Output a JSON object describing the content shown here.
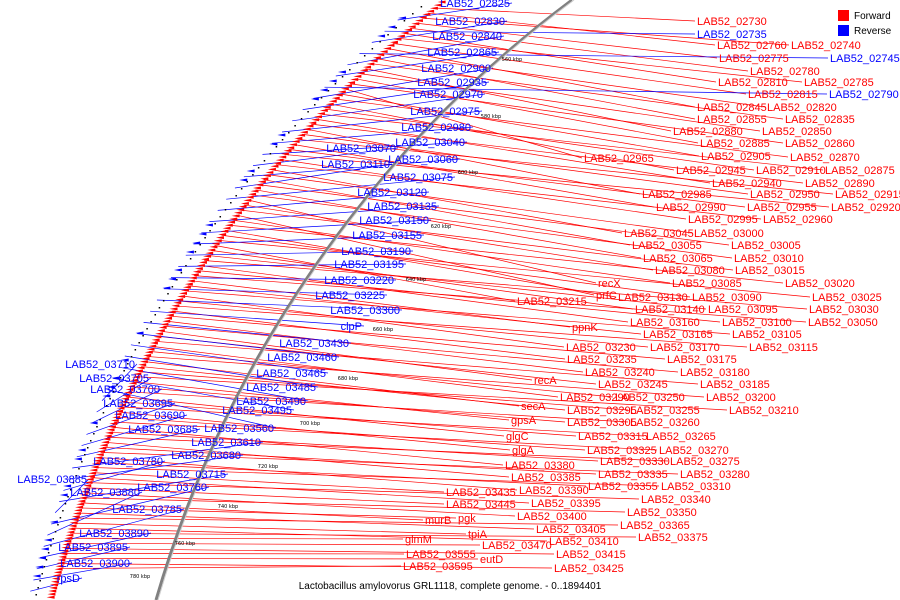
{
  "caption": "Lactobacillus amylovorus GRL1118, complete genome. - 0..1894401",
  "legend": [
    {
      "label": "Forward",
      "color": "#ff0000"
    },
    {
      "label": "Reverse",
      "color": "#0000ff"
    }
  ],
  "colors": {
    "forward": "#ff0000",
    "reverse": "#0000ff",
    "backbone": "#808080"
  },
  "ticks": [
    "560 kbp",
    "580 kbp",
    "600 kbp",
    "620 kbp",
    "640 kbp",
    "660 kbp",
    "680 kbp",
    "700 kbp",
    "720 kbp",
    "740 kbp",
    "760 kbp",
    "780 kbp"
  ],
  "forward_labels": [
    "LAB52_02730",
    "LAB52_02760",
    "LAB52_02740",
    "LAB52_02775",
    "LAB52_02780",
    "LAB52_02810",
    "LAB52_02785",
    "LAB52_02815",
    "LAB52_02845",
    "LAB52_02820",
    "LAB52_02855",
    "LAB52_02835",
    "LAB52_02880",
    "LAB52_02850",
    "LAB52_02885",
    "LAB52_02860",
    "LAB52_02965",
    "LAB52_02905",
    "LAB52_02870",
    "LAB52_02945",
    "LAB52_02910",
    "LAB52_02875",
    "LAB52_02940",
    "LAB52_02890",
    "LAB52_02985",
    "LAB52_02950",
    "LAB52_02915",
    "LAB52_02990",
    "LAB52_02955",
    "LAB52_02920",
    "LAB52_02995",
    "LAB52_02960",
    "LAB52_03045",
    "LAB52_03000",
    "LAB52_03055",
    "LAB52_03005",
    "LAB52_03065",
    "LAB52_03010",
    "recX",
    "LAB52_03080",
    "LAB52_03015",
    "prfC",
    "LAB52_03085",
    "LAB52_03020",
    "LAB52_03130",
    "LAB52_03090",
    "LAB52_03025",
    "LAB52_03215",
    "LAB52_03140",
    "LAB52_03095",
    "LAB52_03030",
    "LAB52_03160",
    "LAB52_03100",
    "LAB52_03050",
    "ppnK",
    "LAB52_03165",
    "LAB52_03105",
    "LAB52_03230",
    "LAB52_03170",
    "LAB52_03115",
    "LAB52_03235",
    "LAB52_03175",
    "LAB52_03240",
    "LAB52_03180",
    "recA",
    "LAB52_03245",
    "LAB52_03185",
    "LAB52_03290",
    "LAB52_03250",
    "LAB52_03200",
    "secA",
    "LAB52_03295",
    "LAB52_03255",
    "LAB52_03210",
    "gpsA",
    "LAB52_03305",
    "LAB52_03260",
    "glgC",
    "LAB52_03315",
    "LAB52_03265",
    "glgA",
    "LAB52_03325",
    "LAB52_03270",
    "LAB52_03380",
    "LAB52_03330",
    "LAB52_03275",
    "LAB52_03385",
    "LAB52_03335",
    "LAB52_03280",
    "LAB52_03390",
    "LAB52_03355",
    "LAB52_03310",
    "LAB52_03435",
    "LAB52_03395",
    "LAB52_03340",
    "LAB52_03445",
    "LAB52_03400",
    "LAB52_03350",
    "murB",
    "pgk",
    "LAB52_03405",
    "LAB52_03365",
    "tpiA",
    "LAB52_03410",
    "LAB52_03375",
    "glmM",
    "LAB52_03470",
    "LAB52_03415",
    "LAB52_03555",
    "eutD",
    "LAB52_03425",
    "LAB52_03595"
  ],
  "reverse_labels": [
    "LAB52_02825",
    "LAB52_02735",
    "LAB52_02830",
    "LAB52_02745",
    "LAB52_02840",
    "LAB52_02865",
    "LAB52_02790",
    "LAB52_02900",
    "LAB52_02935",
    "LAB52_02970",
    "LAB52_02975",
    "LAB52_02980",
    "LAB52_03040",
    "LAB52_03070",
    "LAB52_03060",
    "LAB52_03110",
    "LAB52_03075",
    "LAB52_03120",
    "LAB52_03135",
    "LAB52_03150",
    "LAB52_03155",
    "LAB52_03190",
    "LAB52_03195",
    "LAB52_03220",
    "LAB52_03225",
    "LAB52_03300",
    "clpP",
    "LAB52_03430",
    "LAB52_03460",
    "LAB52_03465",
    "LAB52_03485",
    "LAB52_03490",
    "LAB52_03495",
    "LAB52_03560",
    "LAB52_03710",
    "LAB52_03705",
    "LAB52_03700",
    "LAB52_03695",
    "LAB52_03690",
    "LAB52_03685",
    "LAB52_03610",
    "LAB52_03680",
    "LAB52_03780",
    "LAB52_03715",
    "LAB52_03885",
    "LAB52_03760",
    "LAB52_03880",
    "LAB52_03785",
    "LAB52_03890",
    "LAB52_03895",
    "LAB52_03900",
    "rpsD"
  ]
}
